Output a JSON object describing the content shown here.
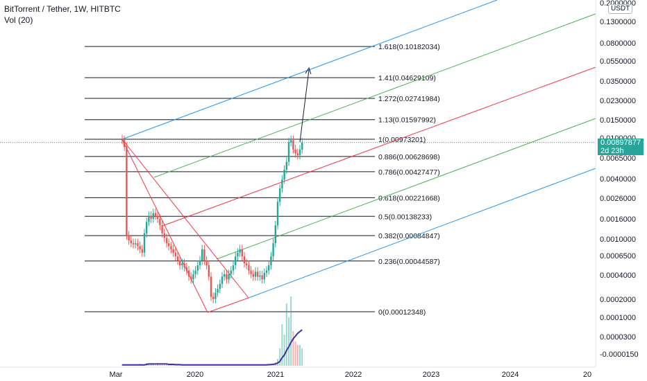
{
  "header": {
    "title": "BitTorrent / Tether, 1W, HITBTC",
    "indicator": "Vol (20)"
  },
  "price_axis": {
    "unit": "USDT",
    "ticks": [
      "0.2000000",
      "0.1300000",
      "0.0800000",
      "0.0550000",
      "0.0350000",
      "0.0230000",
      "0.0150000",
      "0.0100000",
      "0.0065000",
      "0.0040000",
      "0.0026000",
      "0.0016000",
      "0.0010000",
      "0.0006500",
      "0.0004000",
      "0.0002000",
      "0.0001000",
      "0.0000300",
      "-0.0000150"
    ],
    "current_price": "0.00897877",
    "countdown": "2d 23h"
  },
  "chart_data": {
    "type": "candlestick",
    "symbol": "BitTorrent / Tether",
    "interval": "1W",
    "exchange": "HITBTC",
    "y_scale": "log",
    "x_ticks": [
      "Mar",
      "2020",
      "2021",
      "2022",
      "2023",
      "2024",
      "20"
    ],
    "fib_levels": [
      {
        "ratio": "1.618",
        "value": 0.10182034,
        "label": "1.618(0.10182034)"
      },
      {
        "ratio": "1.41",
        "value": 0.04629109,
        "label": "1.41(0.04629109)"
      },
      {
        "ratio": "1.272",
        "value": 0.02741984,
        "label": "1.272(0.02741984)"
      },
      {
        "ratio": "1.13",
        "value": 0.01597992,
        "label": "1.13(0.01597992)"
      },
      {
        "ratio": "1",
        "value": 0.00973201,
        "label": "1(0.00973201)"
      },
      {
        "ratio": "0.886",
        "value": 0.00628698,
        "label": "0.886(0.00628698)"
      },
      {
        "ratio": "0.786",
        "value": 0.00427477,
        "label": "0.786(0.00427477)"
      },
      {
        "ratio": "0.618",
        "value": 0.00221668,
        "label": "0.618(0.00221668)"
      },
      {
        "ratio": "0.5",
        "value": 0.00138233,
        "label": "0.5(0.00138233)"
      },
      {
        "ratio": "0.382",
        "value": 0.00084847,
        "label": "0.382(0.00084847)"
      },
      {
        "ratio": "0.236",
        "value": 0.00044587,
        "label": "0.236(0.00044587)"
      },
      {
        "ratio": "0",
        "value": 0.00012348,
        "label": "0(0.00012348)"
      }
    ],
    "ohlc_approx": [
      0.0095,
      0.008,
      0.00085,
      0.00075,
      0.0007,
      0.00068,
      0.0007,
      0.00065,
      0.0006,
      0.00055,
      0.0009,
      0.0012,
      0.0014,
      0.0013,
      0.0015,
      0.0014,
      0.0013,
      0.0011,
      0.0009,
      0.0008,
      0.0007,
      0.00065,
      0.0006,
      0.00055,
      0.0005,
      0.00045,
      0.0004,
      0.00042,
      0.00038,
      0.00035,
      0.0003,
      0.00028,
      0.00032,
      0.00035,
      0.0004,
      0.00045,
      0.0006,
      0.00045,
      0.0004,
      0.0003,
      0.00018,
      0.00017,
      0.0002,
      0.00022,
      0.00025,
      0.0003,
      0.00032,
      0.00028,
      0.00032,
      0.00035,
      0.0004,
      0.0005,
      0.00055,
      0.0006,
      0.0005,
      0.00042,
      0.0004,
      0.00035,
      0.00032,
      0.0003,
      0.00034,
      0.0003,
      0.00031,
      0.00028,
      0.00033,
      0.00035,
      0.0004,
      0.0005,
      0.0007,
      0.0011,
      0.002,
      0.0028,
      0.0035,
      0.0045,
      0.0055,
      0.009,
      0.0095,
      0.0075,
      0.0068,
      0.0065,
      0.0075,
      0.009
    ],
    "volume_approx": [
      0.02,
      0.02,
      0.01,
      0.01,
      0.01,
      0.01,
      0.02,
      0.02,
      0.03,
      0.01,
      0.02,
      0.04,
      0.02,
      0.02,
      0.02,
      0.01,
      0.02,
      0.01,
      0.01,
      0.01,
      0.01,
      0.01,
      0.01,
      0.01,
      0.01,
      0.01,
      0.01,
      0.01,
      0.01,
      0.01,
      0.01,
      0.01,
      0.01,
      0.01,
      0.01,
      0.01,
      0.01,
      0.01,
      0.01,
      0.01,
      0.01,
      0.01,
      0.01,
      0.01,
      0.01,
      0.01,
      0.01,
      0.01,
      0.01,
      0.01,
      0.01,
      0.01,
      0.01,
      0.01,
      0.01,
      0.01,
      0.01,
      0.01,
      0.01,
      0.01,
      0.01,
      0.01,
      0.01,
      0.01,
      0.01,
      0.01,
      0.02,
      0.02,
      0.03,
      0.05,
      0.1,
      0.25,
      0.6,
      0.45,
      0.9,
      0.7,
      1.0,
      0.5,
      0.35,
      0.3,
      0.3,
      0.25
    ],
    "volume_ma": [
      0.01,
      0.01,
      0.01,
      0.01,
      0.01,
      0.01,
      0.01,
      0.01,
      0.01,
      0.01,
      0.01,
      0.015,
      0.02,
      0.02,
      0.02,
      0.02,
      0.02,
      0.02,
      0.02,
      0.02,
      0.02,
      0.015,
      0.015,
      0.015,
      0.012,
      0.012,
      0.012,
      0.01,
      0.01,
      0.01,
      0.01,
      0.01,
      0.01,
      0.01,
      0.01,
      0.01,
      0.01,
      0.01,
      0.01,
      0.01,
      0.01,
      0.01,
      0.01,
      0.01,
      0.01,
      0.01,
      0.01,
      0.01,
      0.01,
      0.01,
      0.01,
      0.01,
      0.01,
      0.01,
      0.01,
      0.01,
      0.01,
      0.01,
      0.01,
      0.01,
      0.01,
      0.01,
      0.01,
      0.01,
      0.01,
      0.01,
      0.012,
      0.014,
      0.016,
      0.02,
      0.03,
      0.05,
      0.09,
      0.12,
      0.17,
      0.21,
      0.26,
      0.3,
      0.33,
      0.36,
      0.38,
      0.4
    ],
    "colors": {
      "up": "#26a69a",
      "down": "#ef5350",
      "fib_line": "#131722",
      "pitchfork_outer": "#2196f3",
      "pitchfork_inner": "#4caf50",
      "median": "#f23645",
      "volume_ma": "#3f2ea3"
    }
  }
}
